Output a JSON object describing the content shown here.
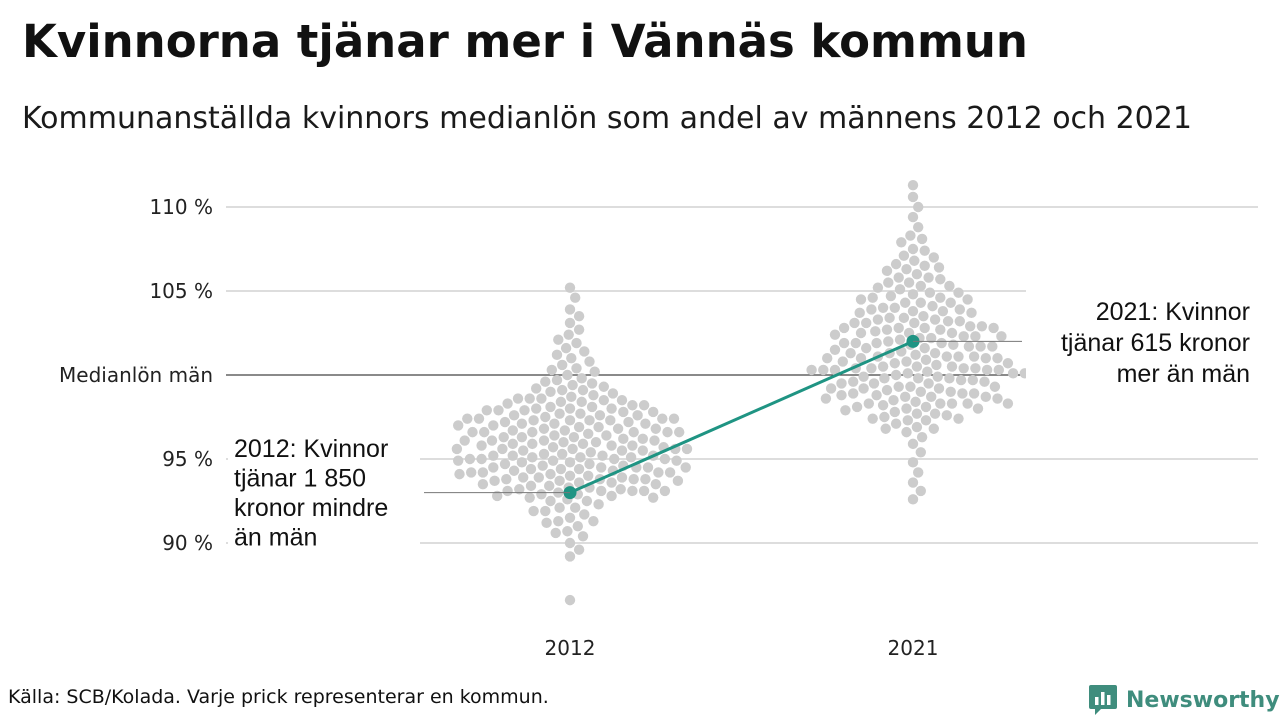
{
  "title": "Kvinnorna tjänar mer i Vännäs kommun",
  "subtitle": "Kommunanställda kvinnors medianlön som andel av männens 2012 och 2021",
  "source": "Källa: SCB/Kolada. Varje prick representerar en kommun.",
  "brand": {
    "name": "Newsworthy",
    "icon": "bar-chart-logo-icon"
  },
  "colors": {
    "dots": "#cccccc",
    "highlight": "#1f9483",
    "grid": "#dddddd",
    "refline": "#444444",
    "brand": "#3f8d7d"
  },
  "chart_data": {
    "type": "scatter",
    "title": "Kvinnorna tjänar mer i Vännäs kommun",
    "subtitle": "Kommunanställda kvinnors medianlön som andel av männens 2012 och 2021",
    "categories": [
      "2012",
      "2021"
    ],
    "ylim": [
      86.5,
      111.5
    ],
    "yticks": [
      {
        "value": 90,
        "label": "90 %"
      },
      {
        "value": 95,
        "label": "95 %"
      },
      {
        "value": 100,
        "label": "Medianlön män"
      },
      {
        "value": 105,
        "label": "105 %"
      },
      {
        "value": 110,
        "label": "110 %"
      }
    ],
    "grid": true,
    "reference_line": {
      "value": 100,
      "label": "Medianlön män"
    },
    "highlight": {
      "name": "Vännäs",
      "values": [
        93.0,
        102.0
      ]
    },
    "annotations": [
      {
        "category": "2012",
        "lines": [
          "2012: Kvinnor",
          "tjänar 1 850",
          "kronor mindre",
          "än män"
        ]
      },
      {
        "category": "2021",
        "lines": [
          "2021: Kvinnor",
          "tjänar 615 kronor",
          "mer än män"
        ]
      }
    ],
    "series": [
      {
        "category": "2012",
        "values": [
          105.2,
          104.6,
          103.9,
          103.5,
          103.1,
          102.7,
          102.4,
          102.1,
          101.9,
          101.6,
          101.4,
          101.2,
          101.0,
          100.8,
          100.6,
          100.4,
          100.2,
          100.0,
          99.8,
          99.6,
          99.5,
          99.3,
          99.2,
          99.0,
          98.9,
          98.8,
          98.6,
          98.5,
          98.4,
          98.3,
          98.2,
          98.1,
          98.0,
          97.9,
          97.8,
          97.7,
          97.6,
          97.5,
          97.4,
          97.3,
          97.2,
          97.1,
          97.0,
          96.9,
          96.8,
          96.7,
          96.6,
          96.5,
          96.4,
          96.3,
          96.2,
          96.1,
          96.0,
          95.9,
          95.8,
          95.7,
          95.6,
          95.5,
          95.4,
          95.3,
          95.2,
          95.1,
          95.0,
          94.9,
          94.8,
          94.7,
          94.6,
          94.5,
          94.4,
          94.3,
          94.2,
          94.1,
          94.0,
          93.9,
          93.8,
          93.7,
          93.6,
          93.5,
          93.4,
          93.3,
          93.2,
          93.1,
          93.0,
          92.9,
          92.8,
          92.7,
          92.5,
          92.3,
          92.1,
          91.9,
          91.7,
          91.5,
          91.3,
          91.0,
          90.7,
          90.4,
          90.0,
          89.6,
          89.2,
          86.6,
          98.4,
          98.0,
          97.7,
          97.3,
          97.0,
          96.6,
          96.3,
          95.9,
          95.6,
          95.2,
          94.9,
          94.5,
          94.2,
          93.8,
          93.5,
          93.1,
          92.8,
          97.4,
          96.8,
          96.2,
          95.6,
          95.0,
          94.4,
          93.8,
          93.2,
          97.9,
          97.1,
          96.3,
          95.5,
          94.7,
          93.9,
          99.1,
          98.6,
          98.1,
          97.6,
          97.1,
          96.6,
          96.1,
          95.6,
          95.1,
          94.6,
          94.1,
          93.6,
          93.1,
          92.6,
          99.4,
          98.7,
          98.0,
          97.3,
          96.6,
          95.9,
          95.2,
          94.5,
          93.8,
          93.1,
          97.6,
          97.2,
          96.8,
          96.4,
          96.0,
          95.6,
          95.2,
          94.8,
          94.4,
          94.0,
          96.9,
          96.1,
          95.3,
          94.5,
          93.7,
          92.9,
          92.1,
          91.2,
          90.6,
          95.7,
          95.1,
          94.5,
          93.9,
          93.3,
          92.7,
          98.2,
          97.4,
          96.6,
          95.8,
          95.0,
          94.2,
          93.4,
          100.3,
          99.7,
          99.1,
          98.5,
          97.9,
          97.3,
          96.7,
          96.1,
          95.5,
          94.9,
          94.3,
          93.7,
          93.1,
          92.5,
          91.9,
          91.3,
          94.2,
          95.0,
          95.8,
          96.6,
          97.4,
          97.8,
          98.6
        ]
      },
      {
        "category": "2021",
        "values": [
          111.3,
          110.6,
          110.0,
          109.4,
          108.8,
          108.3,
          107.9,
          107.5,
          107.1,
          106.8,
          106.5,
          106.2,
          106.0,
          105.7,
          105.5,
          105.3,
          105.1,
          104.9,
          104.7,
          104.5,
          104.3,
          104.1,
          103.9,
          103.7,
          103.5,
          103.3,
          103.1,
          102.9,
          102.7,
          102.5,
          102.3,
          102.1,
          101.9,
          101.7,
          101.5,
          101.3,
          101.1,
          100.9,
          100.7,
          100.5,
          100.3,
          100.1,
          99.9,
          99.7,
          99.5,
          99.3,
          99.1,
          98.9,
          98.7,
          98.5,
          98.3,
          98.1,
          97.9,
          97.7,
          97.5,
          97.3,
          97.1,
          96.9,
          96.6,
          96.3,
          95.9,
          95.4,
          94.8,
          94.2,
          93.6,
          93.1,
          92.6,
          106.3,
          105.8,
          105.3,
          104.8,
          104.3,
          103.8,
          103.3,
          102.8,
          102.3,
          101.8,
          101.3,
          100.8,
          100.3,
          99.8,
          99.3,
          98.8,
          98.3,
          97.8,
          97.3,
          96.8,
          104.6,
          104.0,
          103.4,
          102.8,
          102.2,
          101.6,
          101.0,
          100.4,
          99.8,
          99.2,
          98.6,
          98.0,
          97.4,
          103.9,
          103.2,
          102.5,
          101.8,
          101.1,
          100.4,
          99.7,
          99.0,
          98.3,
          97.6,
          102.9,
          102.3,
          101.7,
          101.1,
          100.5,
          99.9,
          99.3,
          98.7,
          98.1,
          102.8,
          101.9,
          101.0,
          100.1,
          99.2,
          98.3,
          100.5,
          100.3,
          107.0,
          106.4,
          105.8,
          105.2,
          104.6,
          104.0,
          103.4,
          102.8,
          102.2,
          101.6,
          101.0,
          100.4,
          99.8,
          99.2,
          98.6,
          98.0,
          97.4,
          96.8,
          105.5,
          104.9,
          104.3,
          103.7,
          103.1,
          102.5,
          101.9,
          101.3,
          100.7,
          100.1,
          99.5,
          98.9,
          98.3,
          97.7,
          104.5,
          103.8,
          103.1,
          102.4,
          101.7,
          101.0,
          100.3,
          99.6,
          98.9,
          98.2,
          103.2,
          102.6,
          102.0,
          101.4,
          100.8,
          100.2,
          99.6,
          99.0,
          98.4,
          102.7,
          101.9,
          101.1,
          100.3,
          99.5,
          98.7,
          100.6,
          100.4,
          101.2,
          100.0,
          98.8,
          108.1,
          107.4,
          106.6
        ]
      }
    ]
  }
}
